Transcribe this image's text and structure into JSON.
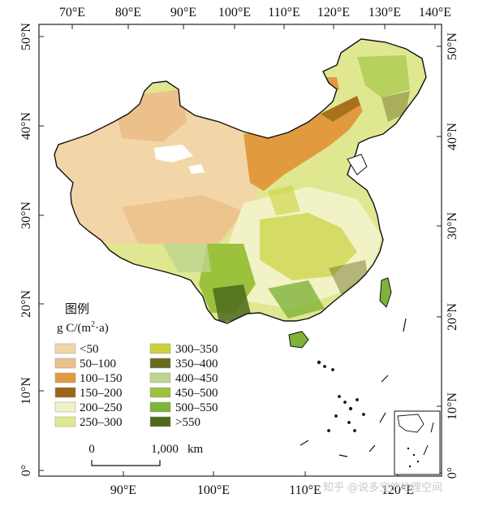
{
  "map": {
    "axes": {
      "top_lon_ticks": [
        "70°E",
        "80°E",
        "90°E",
        "100°E",
        "110°E",
        "120°E",
        "130°E",
        "140°E"
      ],
      "bottom_lon_ticks": [
        "90°E",
        "100°E",
        "110°E",
        "120°E"
      ],
      "left_lat_ticks": [
        "50°N",
        "40°N",
        "30°N",
        "20°N",
        "10°N",
        "0°"
      ],
      "right_lat_ticks": [
        "50°N",
        "40°N",
        "30°N",
        "20°N",
        "10°N",
        "0°"
      ]
    },
    "legend": {
      "title": "图例",
      "unit_main": "g C/(m",
      "unit_sup": "2",
      "unit_tail": "·a)",
      "classes": [
        {
          "label": "<50",
          "color": "#f3d6a8"
        },
        {
          "label": "50–100",
          "color": "#ebc08a"
        },
        {
          "label": "100–150",
          "color": "#e29a3f"
        },
        {
          "label": "150–200",
          "color": "#9a6614"
        },
        {
          "label": "200–250",
          "color": "#f1f3c6"
        },
        {
          "label": "250–300",
          "color": "#dfe891"
        },
        {
          "label": "300–350",
          "color": "#c9d23c"
        },
        {
          "label": "350–400",
          "color": "#6a6a1e"
        },
        {
          "label": "400–450",
          "color": "#bdd58f"
        },
        {
          "label": "450–500",
          "color": "#9cc23d"
        },
        {
          "label": "500–550",
          "color": "#7fb33a"
        },
        {
          "label": ">550",
          "color": "#4d6a1c"
        }
      ]
    },
    "scale_bar": {
      "start_label": "0",
      "end_label": "1,000",
      "unit": "km"
    },
    "watermark": "知乎 @说多宝的地理空间"
  }
}
